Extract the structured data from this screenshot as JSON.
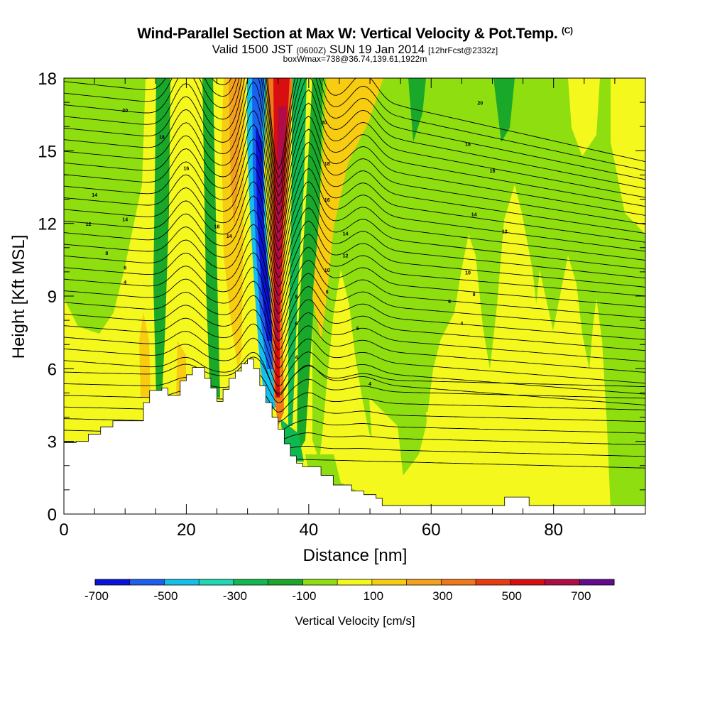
{
  "title": {
    "main": "Wind-Parallel Section at Max W: Vertical Velocity & Pot.Temp.",
    "copyright": "(C)",
    "valid_prefix": "Valid 1500 JST",
    "valid_utc": "(0600Z)",
    "valid_date": "SUN 19 Jan 2014",
    "forecast": "[12hrFcst@2332z]",
    "box_info": "boxWmax=738@36.74,139.61,1922m"
  },
  "chart_data": {
    "type": "heatmap",
    "xlabel": "Distance [nm]",
    "ylabel": "Height [Kft MSL]",
    "xlim": [
      0,
      95
    ],
    "ylim": [
      0,
      18
    ],
    "x_ticks": [
      "0",
      "20",
      "40",
      "60",
      "80"
    ],
    "x_tick_values": [
      0,
      20,
      40,
      60,
      80
    ],
    "y_ticks": [
      "0",
      "3",
      "6",
      "9",
      "12",
      "15",
      "18"
    ],
    "y_tick_values": [
      0,
      3,
      6,
      9,
      12,
      15,
      18
    ],
    "colorbar": {
      "label": "Vertical Velocity [cm/s]",
      "min": -700,
      "max": 800,
      "step": 100,
      "tick_labels": [
        "-700",
        "-500",
        "-300",
        "-100",
        "100",
        "300",
        "500",
        "700"
      ],
      "tick_values": [
        -700,
        -500,
        -300,
        -100,
        100,
        300,
        500,
        700
      ],
      "colors": [
        "#0a14d8",
        "#1c60f0",
        "#12c0ec",
        "#1ed8b4",
        "#10b850",
        "#1aa82a",
        "#8ede10",
        "#f4f81c",
        "#f8cc10",
        "#f4a01c",
        "#f07818",
        "#e83c10",
        "#d80e10",
        "#b00c48",
        "#640a8c"
      ]
    },
    "terrain_kft": [
      [
        0,
        2.95
      ],
      [
        2,
        3.0
      ],
      [
        4,
        3.3
      ],
      [
        6,
        3.6
      ],
      [
        8,
        3.85
      ],
      [
        12,
        3.85
      ],
      [
        13,
        4.6
      ],
      [
        14,
        5.1
      ],
      [
        15,
        5.1
      ],
      [
        16,
        5.2
      ],
      [
        17,
        4.9
      ],
      [
        19,
        5.5
      ],
      [
        20,
        5.75
      ],
      [
        21,
        6.05
      ],
      [
        22,
        6.05
      ],
      [
        23,
        5.6
      ],
      [
        24,
        5.2
      ],
      [
        25,
        4.65
      ],
      [
        26,
        5.15
      ],
      [
        27,
        5.6
      ],
      [
        28,
        5.9
      ],
      [
        29,
        6.2
      ],
      [
        30,
        6.4
      ],
      [
        31,
        6.0
      ],
      [
        32,
        5.3
      ],
      [
        33,
        4.6
      ],
      [
        34,
        4.0
      ],
      [
        35,
        3.5
      ],
      [
        36,
        2.9
      ],
      [
        37,
        2.4
      ],
      [
        38,
        2.1
      ],
      [
        39,
        1.95
      ],
      [
        41,
        1.95
      ],
      [
        42,
        1.6
      ],
      [
        44,
        1.2
      ],
      [
        47,
        0.95
      ],
      [
        49,
        0.8
      ],
      [
        51,
        0.65
      ],
      [
        52,
        0.35
      ],
      [
        60,
        0.35
      ],
      [
        65,
        0.35
      ],
      [
        71,
        0.35
      ],
      [
        72,
        0.7
      ],
      [
        74,
        0.7
      ],
      [
        76,
        0.35
      ],
      [
        95,
        0.35
      ]
    ],
    "w_field_cms": [
      {
        "x0": 0,
        "x1": 18,
        "value": 100,
        "note": "weak ascent, yellow"
      },
      {
        "x0": 3,
        "x1": 8,
        "y0": 8.5,
        "y1": 18,
        "value": -50
      },
      {
        "x0": 15,
        "x1": 17.5,
        "y0": 5,
        "y1": 18,
        "value": -150
      },
      {
        "x0": 22,
        "x1": 25,
        "y0": 4.8,
        "y1": 18,
        "value": -200
      },
      {
        "x0": 27,
        "x1": 29.5,
        "y0": 6,
        "y1": 18,
        "value": 300
      },
      {
        "x0": 30,
        "x1": 34,
        "y0": 4.5,
        "y1": 18,
        "value": -700
      },
      {
        "x0": 34,
        "x1": 37,
        "y0": 4.5,
        "y1": 18,
        "value": 700
      },
      {
        "x0": 38,
        "x1": 40,
        "y0": 2.1,
        "y1": 18,
        "value": -200
      },
      {
        "x0": 40,
        "x1": 47,
        "y0": 1.5,
        "y1": 18,
        "value": 250
      },
      {
        "x0": 48,
        "x1": 95,
        "value": 100
      }
    ],
    "theta_contours": {
      "units": "unlabeled",
      "labels": [
        "4",
        "6",
        "8",
        "10",
        "12",
        "14",
        "16",
        "18",
        "20"
      ]
    }
  }
}
